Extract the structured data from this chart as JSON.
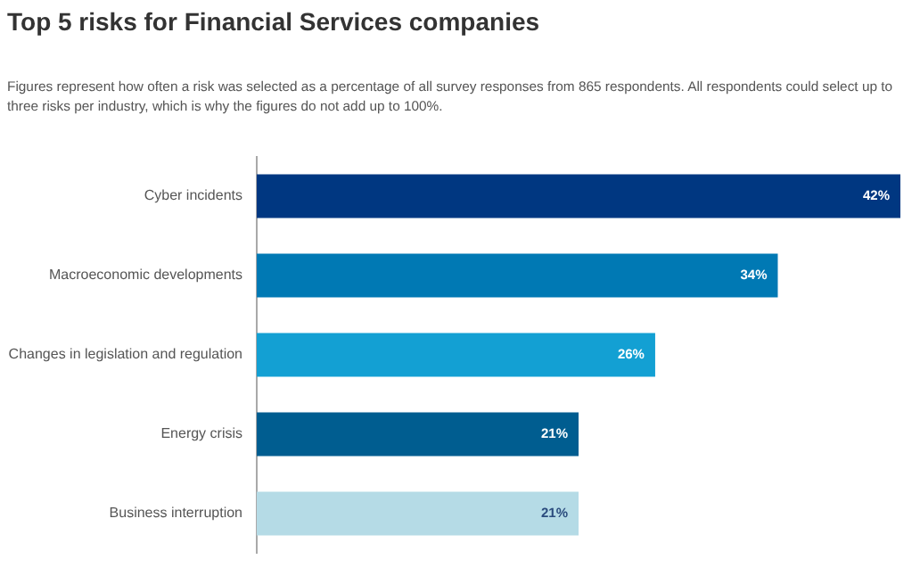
{
  "chart_data": {
    "type": "bar",
    "orientation": "horizontal",
    "title": "Top 5 risks for Financial Services companies",
    "annotations": [
      "Figures represent how often a risk was selected as a percentage of all survey responses from 865 respondents. All respondents could select up to three risks per industry, which is why the figures do not add up to 100%."
    ],
    "categories": [
      "Cyber incidents",
      "Macroeconomic developments",
      "Changes in legislation and regulation",
      "Energy crisis",
      "Business interruption"
    ],
    "values": [
      42,
      34,
      26,
      21,
      21
    ],
    "colors": [
      "#003781",
      "#0079b4",
      "#13a0d3",
      "#005d90",
      "#b5dbe6"
    ],
    "value_labels": [
      "42%",
      "34%",
      "26%",
      "21%",
      "21%"
    ],
    "grid": false,
    "legend": false
  }
}
